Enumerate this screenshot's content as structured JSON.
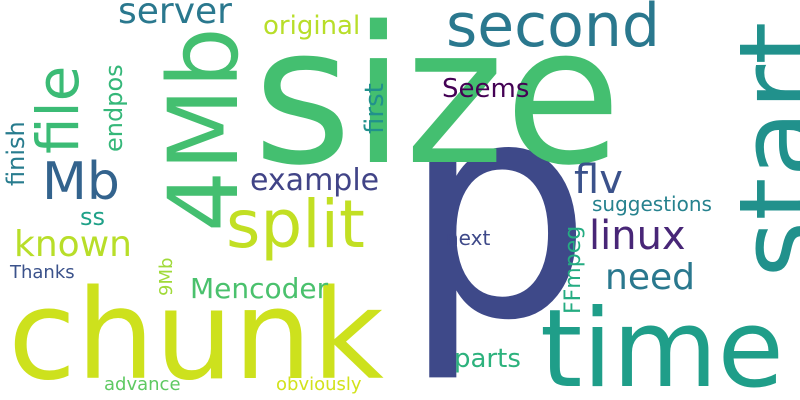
{
  "words": {
    "p": {
      "text": "p",
      "color": "#3e4989"
    },
    "size": {
      "text": "size",
      "color": "#44bf70"
    },
    "chunk": {
      "text": "chunk",
      "color": "#cde11d"
    },
    "start": {
      "text": "start",
      "color": "#21918c"
    },
    "time": {
      "text": "time",
      "color": "#1f9e89"
    },
    "fourmb": {
      "text": "4Mb",
      "color": "#44bf70"
    },
    "second": {
      "text": "second",
      "color": "#2a788e"
    },
    "split": {
      "text": "split",
      "color": "#c2df23"
    },
    "file": {
      "text": "file",
      "color": "#3bbb75"
    },
    "mb": {
      "text": "Mb",
      "color": "#33638d"
    },
    "server": {
      "text": "server",
      "color": "#2a788e"
    },
    "original": {
      "text": "original",
      "color": "#b8de29"
    },
    "linux": {
      "text": "linux",
      "color": "#482677"
    },
    "known": {
      "text": "known",
      "color": "#b8de29"
    },
    "example": {
      "text": "example",
      "color": "#414487"
    },
    "flv": {
      "text": "flv",
      "color": "#3b528b"
    },
    "need": {
      "text": "need",
      "color": "#2a788e"
    },
    "seems": {
      "text": "Seems",
      "color": "#440154"
    },
    "first": {
      "text": "first",
      "color": "#21918c"
    },
    "endpos": {
      "text": "endpos",
      "color": "#35b779"
    },
    "finish": {
      "text": "finish",
      "color": "#287c8e"
    },
    "ss": {
      "text": "ss",
      "color": "#1fa188"
    },
    "mencoder": {
      "text": "Mencoder",
      "color": "#4ac16d"
    },
    "ninemb": {
      "text": "9Mb",
      "color": "#a0da39"
    },
    "ffmpeg": {
      "text": "FFmpeg",
      "color": "#25ac82"
    },
    "suggestions": {
      "text": "suggestions",
      "color": "#26828e"
    },
    "next": {
      "text": "next",
      "color": "#3e4989"
    },
    "parts": {
      "text": "parts",
      "color": "#2db27d"
    },
    "thanks": {
      "text": "Thanks",
      "color": "#3b528b"
    },
    "advance": {
      "text": "advance",
      "color": "#5ec962"
    },
    "obviously": {
      "text": "obviously",
      "color": "#d2e21b"
    }
  }
}
